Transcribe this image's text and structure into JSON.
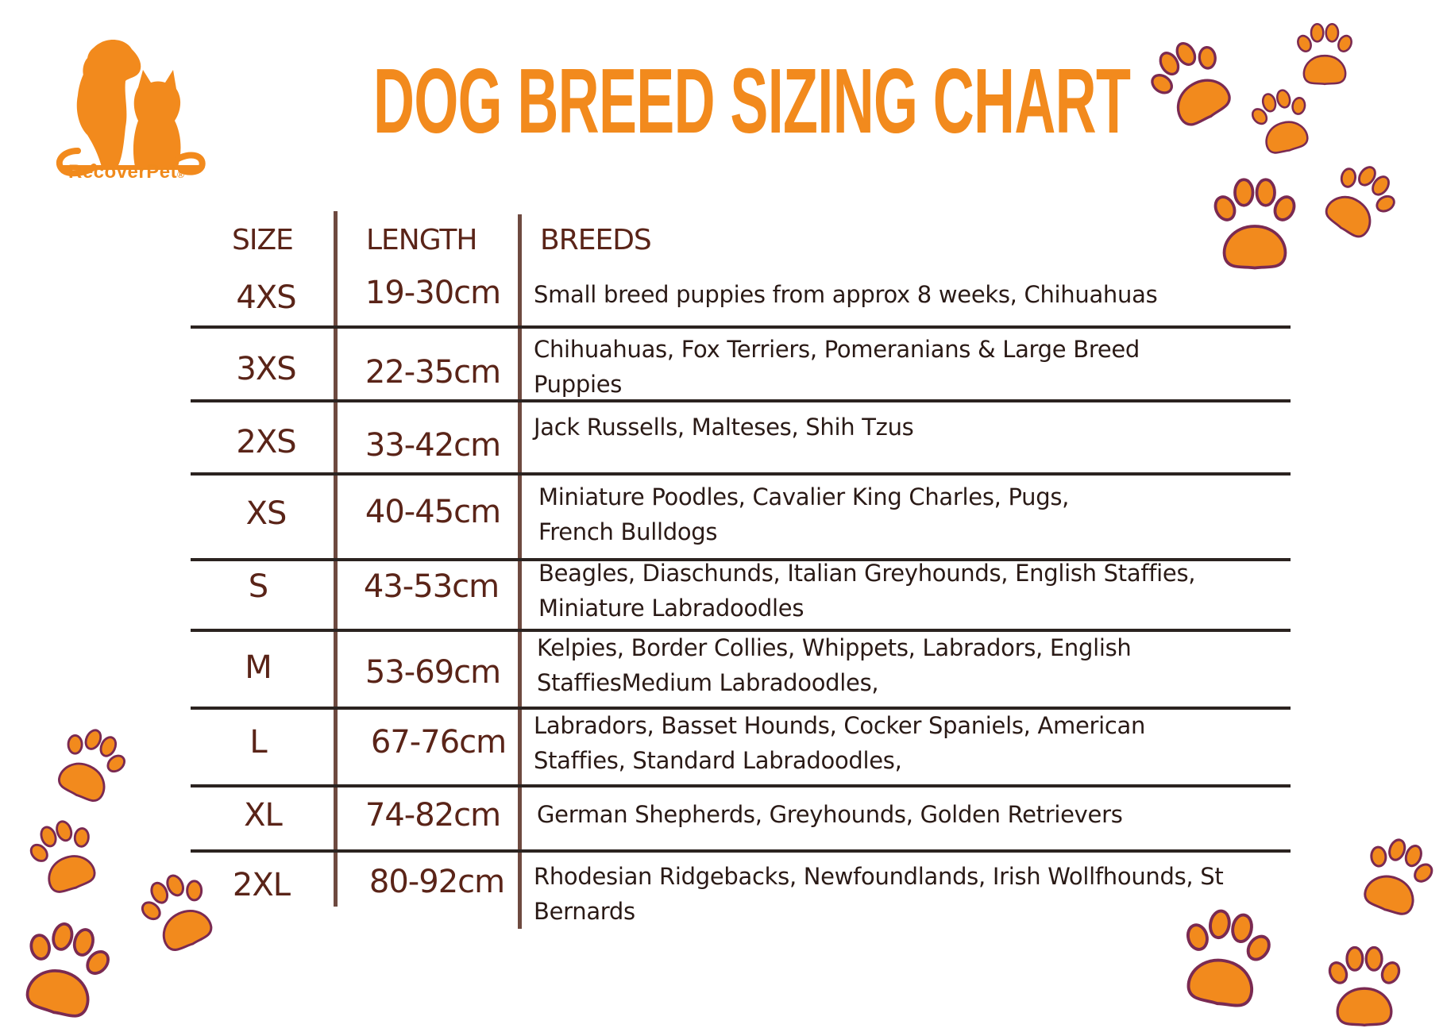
{
  "brand": {
    "name": "RecoverPet",
    "mark": "®"
  },
  "title": "DOG BREED SIZING CHART",
  "headers": {
    "size": "SIZE",
    "length": "LENGTH",
    "breeds": "BREEDS"
  },
  "rows": [
    {
      "size": "4XS",
      "length": "19-30cm",
      "breeds": "Small breed puppies from approx 8 weeks, Chihuahuas"
    },
    {
      "size": "3XS",
      "length": "22-35cm",
      "breeds": "Chihuahuas, Fox Terriers, Pomeranians & Large Breed Puppies"
    },
    {
      "size": "2XS",
      "length": "33-42cm",
      "breeds": "Jack Russells, Malteses, Shih Tzus"
    },
    {
      "size": "XS",
      "length": "40-45cm",
      "breeds": "Miniature Poodles, Cavalier King Charles, Pugs, French Bulldogs"
    },
    {
      "size": "S",
      "length": "43-53cm",
      "breeds": "Beagles, Diaschunds, Italian Greyhounds, English Staffies, Miniature Labradoodles"
    },
    {
      "size": "M",
      "length": "53-69cm",
      "breeds": "Kelpies, Border Collies, Whippets, Labradors, English StaffiesMedium Labradoodles,"
    },
    {
      "size": "L",
      "length": "67-76cm",
      "breeds": "Labradors, Basset Hounds, Cocker Spaniels, American Staffies, Standard Labradoodles,"
    },
    {
      "size": "XL",
      "length": "74-82cm",
      "breeds": "German Shepherds, Greyhounds, Golden Retrievers"
    },
    {
      "size": "2XL",
      "length": "80-92cm",
      "breeds": "Rhodesian Ridgebacks, Newfoundlands, Irish Wollfhounds, St Bernards"
    }
  ],
  "colors": {
    "accent": "#f28a1d",
    "paw_outline": "#7a2a52",
    "text_dark": "#5a2418",
    "rule": "#2b2320"
  },
  "decorations": {
    "icon": "paw-print-icon"
  }
}
